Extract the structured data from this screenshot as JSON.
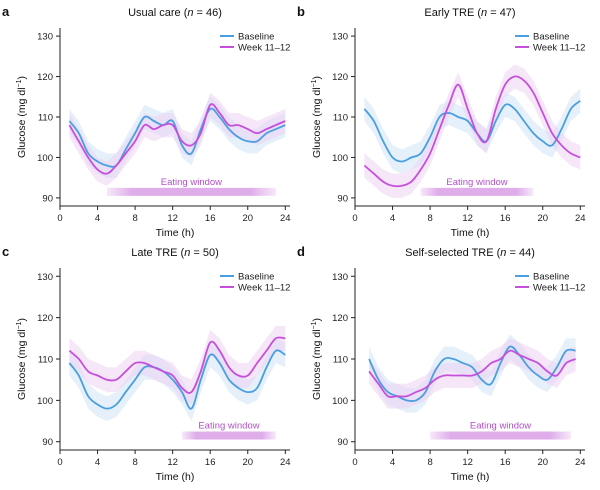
{
  "figure": {
    "y_axis_label": "Glucose (mg dl",
    "y_axis_label_sup": "−1",
    "y_axis_label_end": ")",
    "x_axis_label": "Time (h)",
    "eating_window_label": "Eating window",
    "colors": {
      "baseline": "#4a9fe0",
      "week": "#c64fdc",
      "baseline_band": "#cfe4f6",
      "week_band": "#ecd2f2",
      "eating_window": "#c46ad8"
    }
  },
  "chart_data": [
    {
      "type": "line",
      "letter": "a",
      "title_prefix": "Usual care (",
      "title_n": "n",
      "title_suffix": " = 46)",
      "xlim": [
        0,
        24.5
      ],
      "ylim": [
        88,
        132
      ],
      "xticks": [
        0,
        4,
        8,
        12,
        16,
        20,
        24
      ],
      "yticks": [
        90,
        100,
        110,
        120,
        130
      ],
      "eating_window": [
        5,
        23
      ],
      "legend": [
        "Baseline",
        "Week 11–12"
      ],
      "series": [
        {
          "name": "Baseline",
          "x": [
            1,
            2,
            3,
            4,
            5,
            6,
            7,
            8,
            9,
            10,
            11,
            12,
            13,
            14,
            15,
            16,
            17,
            18,
            19,
            20,
            21,
            22,
            23,
            24
          ],
          "y": [
            109,
            106,
            101,
            99,
            98,
            98,
            102,
            106,
            110,
            109,
            108,
            109,
            103,
            101,
            107,
            112,
            110,
            107,
            105,
            104,
            104,
            106,
            107,
            108
          ]
        },
        {
          "name": "Week 11–12",
          "x": [
            1,
            2,
            3,
            4,
            5,
            6,
            7,
            8,
            9,
            10,
            11,
            12,
            13,
            14,
            15,
            16,
            17,
            18,
            19,
            20,
            21,
            22,
            23,
            24
          ],
          "y": [
            108,
            104,
            100,
            97,
            96,
            98,
            101,
            104,
            108,
            107,
            108,
            108,
            104,
            103,
            106,
            113,
            111,
            108,
            108,
            107,
            106,
            107,
            108,
            109
          ]
        }
      ]
    },
    {
      "type": "line",
      "letter": "b",
      "title_prefix": "Early TRE (",
      "title_n": "n",
      "title_suffix": " = 47)",
      "xlim": [
        0,
        24.5
      ],
      "ylim": [
        88,
        132
      ],
      "xticks": [
        0,
        4,
        8,
        12,
        16,
        20,
        24
      ],
      "yticks": [
        90,
        100,
        110,
        120,
        130
      ],
      "eating_window": [
        7,
        19
      ],
      "legend": [
        "Baseline",
        "Week 11–12"
      ],
      "series": [
        {
          "name": "Baseline",
          "x": [
            1,
            2,
            3,
            4,
            5,
            6,
            7,
            8,
            9,
            10,
            11,
            12,
            13,
            14,
            15,
            16,
            17,
            18,
            19,
            20,
            21,
            22,
            23,
            24
          ],
          "y": [
            112,
            109,
            104,
            100,
            99,
            100,
            101,
            105,
            110,
            111,
            110,
            109,
            106,
            104,
            109,
            113,
            112,
            109,
            106,
            104,
            103,
            107,
            112,
            114
          ]
        },
        {
          "name": "Week 11–12",
          "x": [
            1,
            2,
            3,
            4,
            5,
            6,
            7,
            8,
            9,
            10,
            11,
            12,
            13,
            14,
            15,
            16,
            17,
            18,
            19,
            20,
            21,
            22,
            23,
            24
          ],
          "y": [
            98,
            96,
            94,
            93,
            93,
            94,
            97,
            101,
            107,
            113,
            118,
            112,
            106,
            104,
            112,
            118,
            120,
            119,
            116,
            111,
            106,
            103,
            101,
            100
          ]
        }
      ]
    },
    {
      "type": "line",
      "letter": "c",
      "title_prefix": "Late TRE (",
      "title_n": "n",
      "title_suffix": " = 50)",
      "xlim": [
        0,
        24.5
      ],
      "ylim": [
        88,
        132
      ],
      "xticks": [
        0,
        4,
        8,
        12,
        16,
        20,
        24
      ],
      "yticks": [
        90,
        100,
        110,
        120,
        130
      ],
      "eating_window": [
        13,
        23
      ],
      "legend": [
        "Baseline",
        "Week 11–12"
      ],
      "series": [
        {
          "name": "Baseline",
          "x": [
            1,
            2,
            3,
            4,
            5,
            6,
            7,
            8,
            9,
            10,
            11,
            12,
            13,
            14,
            15,
            16,
            17,
            18,
            19,
            20,
            21,
            22,
            23,
            24
          ],
          "y": [
            109,
            106,
            101,
            99,
            98,
            99,
            102,
            105,
            108,
            108,
            107,
            105,
            102,
            98,
            105,
            111,
            109,
            105,
            103,
            102,
            103,
            108,
            112,
            111
          ]
        },
        {
          "name": "Week 11–12",
          "x": [
            1,
            2,
            3,
            4,
            5,
            6,
            7,
            8,
            9,
            10,
            11,
            12,
            13,
            14,
            15,
            16,
            17,
            18,
            19,
            20,
            21,
            22,
            23,
            24
          ],
          "y": [
            112,
            110,
            107,
            106,
            105,
            105,
            107,
            109,
            109,
            108,
            107,
            106,
            103,
            102,
            107,
            114,
            112,
            108,
            106,
            106,
            109,
            112,
            115,
            115
          ]
        }
      ]
    },
    {
      "type": "line",
      "letter": "d",
      "title_prefix": "Self-selected TRE (",
      "title_n": "n",
      "title_suffix": " = 44)",
      "xlim": [
        0,
        24.5
      ],
      "ylim": [
        88,
        132
      ],
      "xticks": [
        0,
        4,
        8,
        12,
        16,
        20,
        24
      ],
      "yticks": [
        90,
        100,
        110,
        120,
        130
      ],
      "eating_window": [
        8,
        23
      ],
      "legend": [
        "Baseline",
        "Week 11–12"
      ],
      "series": [
        {
          "name": "Baseline",
          "x": [
            1.5,
            2.5,
            3.5,
            4.5,
            5.5,
            6.5,
            7.5,
            8.5,
            9.5,
            10.5,
            11.5,
            12.5,
            13.5,
            14.5,
            15.5,
            16.5,
            17.5,
            18.5,
            19.5,
            20.5,
            21.5,
            22.5,
            23.5
          ],
          "y": [
            110,
            105,
            102,
            101,
            100,
            100,
            102,
            107,
            110,
            110,
            109,
            108,
            105,
            104,
            109,
            113,
            111,
            108,
            106,
            105,
            108,
            112,
            112
          ]
        },
        {
          "name": "Week 11–12",
          "x": [
            1.5,
            2.5,
            3.5,
            4.5,
            5.5,
            6.5,
            7.5,
            8.5,
            9.5,
            10.5,
            11.5,
            12.5,
            13.5,
            14.5,
            15.5,
            16.5,
            17.5,
            18.5,
            19.5,
            20.5,
            21.5,
            22.5,
            23.5
          ],
          "y": [
            107,
            104,
            101,
            101,
            101,
            102,
            103,
            105,
            106,
            106,
            106,
            106,
            107,
            109,
            110,
            112,
            111,
            110,
            109,
            107,
            106,
            109,
            110
          ]
        }
      ]
    }
  ]
}
